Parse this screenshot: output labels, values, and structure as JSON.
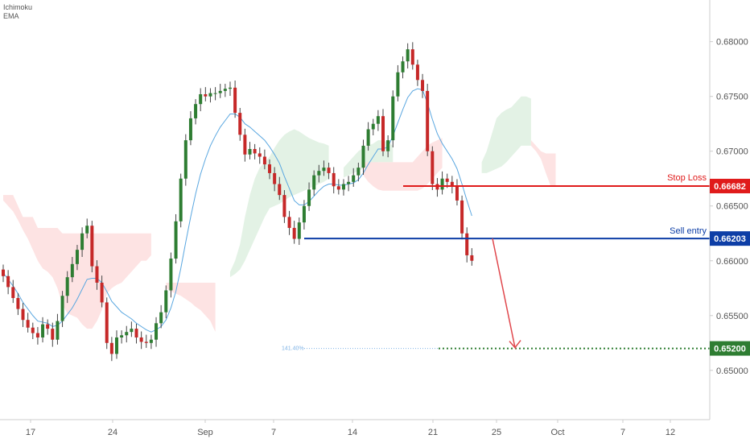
{
  "indicators": [
    "Ichimoku",
    "EMA"
  ],
  "chart_data": {
    "type": "candlestick",
    "ylim": [
      0.6455,
      0.6838
    ],
    "y_ticks": [
      "0.68000",
      "0.67500",
      "0.67000",
      "0.66500",
      "0.66000",
      "0.65500",
      "0.65000"
    ],
    "x_ticks": [
      "17",
      "24",
      "Sep",
      "7",
      "14",
      "21",
      "25",
      "Oct",
      "7",
      "12"
    ],
    "annotations": {
      "stop_loss": {
        "label": "Stop Loss",
        "value": "0.66682",
        "color": "#e01b1b"
      },
      "sell_entry": {
        "label": "Sell entry",
        "value": "0.66203",
        "color": "#0d3ea6"
      },
      "target": {
        "value": "0.65200",
        "color": "#2e7d32"
      },
      "fib_label": "141.40%"
    },
    "colors": {
      "up": "#2e7d32",
      "down": "#c62828",
      "ema": "#5aa7e0",
      "cloud_bull": "#e3f2e5",
      "cloud_bear": "#fde3e3"
    },
    "closes": [
      0.6586,
      0.6576,
      0.6566,
      0.6556,
      0.6546,
      0.6539,
      0.6534,
      0.653,
      0.6542,
      0.6538,
      0.6528,
      0.6545,
      0.6568,
      0.6585,
      0.6597,
      0.661,
      0.6625,
      0.6632,
      0.6595,
      0.658,
      0.6562,
      0.6525,
      0.6515,
      0.653,
      0.6532,
      0.6535,
      0.6538,
      0.653,
      0.6526,
      0.6525,
      0.6528,
      0.6543,
      0.6553,
      0.6573,
      0.6602,
      0.6636,
      0.6675,
      0.671,
      0.673,
      0.6743,
      0.6752,
      0.675,
      0.6753,
      0.6753,
      0.6755,
      0.6757,
      0.6758,
      0.6735,
      0.6715,
      0.6697,
      0.6702,
      0.6698,
      0.6695,
      0.6688,
      0.668,
      0.667,
      0.666,
      0.664,
      0.663,
      0.662,
      0.6635,
      0.665,
      0.6665,
      0.6678,
      0.6682,
      0.6685,
      0.668,
      0.6668,
      0.6665,
      0.667,
      0.6672,
      0.6678,
      0.6685,
      0.6705,
      0.672,
      0.6725,
      0.6732,
      0.67,
      0.671,
      0.675,
      0.6772,
      0.6782,
      0.6793,
      0.6779,
      0.6765,
      0.6755,
      0.67,
      0.667,
      0.6665,
      0.6675,
      0.6672,
      0.6668,
      0.6655,
      0.6625,
      0.6605,
      0.66
    ],
    "ema": [
      0.6589,
      0.6583,
      0.6577,
      0.657,
      0.6562,
      0.6556,
      0.655,
      0.6545,
      0.6544,
      0.6543,
      0.654,
      0.6541,
      0.6545,
      0.6551,
      0.6557,
      0.6565,
      0.6574,
      0.6583,
      0.6584,
      0.6584,
      0.658,
      0.6572,
      0.6563,
      0.6558,
      0.6553,
      0.655,
      0.6547,
      0.6543,
      0.654,
      0.6537,
      0.6535,
      0.6537,
      0.654,
      0.6546,
      0.6557,
      0.6572,
      0.6593,
      0.6617,
      0.664,
      0.6661,
      0.6679,
      0.6693,
      0.6705,
      0.6714,
      0.6722,
      0.6728,
      0.6734,
      0.6734,
      0.6731,
      0.6725,
      0.6722,
      0.6718,
      0.6714,
      0.671,
      0.6704,
      0.6697,
      0.6689,
      0.6677,
      0.6666,
      0.6655,
      0.6651,
      0.6651,
      0.6654,
      0.6659,
      0.6664,
      0.6668,
      0.667,
      0.667,
      0.6669,
      0.6669,
      0.667,
      0.6671,
      0.6674,
      0.668,
      0.6688,
      0.6695,
      0.6702,
      0.6702,
      0.6704,
      0.6714,
      0.6726,
      0.6738,
      0.6749,
      0.6755,
      0.6757,
      0.6756,
      0.6744,
      0.6729,
      0.6716,
      0.6707,
      0.67,
      0.6693,
      0.6684,
      0.667,
      0.6655,
      0.6641
    ],
    "cloud": [
      {
        "type": "bear",
        "top": [
          0.666,
          0.666,
          0.666,
          0.665,
          0.664,
          0.664,
          0.664,
          0.663,
          0.663,
          0.663,
          0.663,
          0.663,
          0.6625,
          0.6625,
          0.6625,
          0.6625,
          0.6625,
          0.6625,
          0.6625,
          0.6625,
          0.6625,
          0.6625,
          0.6625,
          0.6625,
          0.6625,
          0.6625,
          0.6625,
          0.6625,
          0.6625,
          0.6625,
          0.6625
        ],
        "bottom": [
          0.6655,
          0.665,
          0.6645,
          0.6637,
          0.6628,
          0.662,
          0.661,
          0.66,
          0.6593,
          0.659,
          0.6585,
          0.6575,
          0.656,
          0.6552,
          0.655,
          0.6548,
          0.6542,
          0.6538,
          0.6538,
          0.6545,
          0.6555,
          0.657,
          0.6575,
          0.6578,
          0.658,
          0.6585,
          0.659,
          0.6595,
          0.66,
          0.66,
          0.6605
        ]
      },
      {
        "type": "bear",
        "top": [
          0.658,
          0.658,
          0.658,
          0.658,
          0.658,
          0.658,
          0.658,
          0.658,
          0.658,
          0.658,
          0.658
        ],
        "bottom": [
          0.6575,
          0.6572,
          0.657,
          0.6568,
          0.6565,
          0.6562,
          0.6558,
          0.6555,
          0.655,
          0.6545,
          0.6535
        ]
      },
      {
        "type": "bull",
        "top": [
          0.659,
          0.66,
          0.6615,
          0.664,
          0.666,
          0.6675,
          0.6685,
          0.669,
          0.6695,
          0.6703,
          0.671,
          0.6715,
          0.6718,
          0.672,
          0.6718,
          0.6715,
          0.6712,
          0.671,
          0.6708,
          0.6707,
          0.6705
        ],
        "bottom": [
          0.6585,
          0.6588,
          0.6592,
          0.66,
          0.661,
          0.662,
          0.663,
          0.664,
          0.6648,
          0.665,
          0.6652,
          0.6655,
          0.6658,
          0.666,
          0.6662,
          0.6664,
          0.6666,
          0.6668,
          0.667,
          0.6672,
          0.6675
        ]
      },
      {
        "type": "bull",
        "top": [
          0.6685,
          0.669,
          0.6695,
          0.67,
          0.6703,
          0.6705,
          0.6707,
          0.671,
          0.671,
          0.6708,
          0.6705
        ],
        "bottom": [
          0.6676,
          0.6678,
          0.668,
          0.6682,
          0.6684,
          0.6686,
          0.6688,
          0.669,
          0.669,
          0.669,
          0.669
        ]
      },
      {
        "type": "bear",
        "top": [
          0.669,
          0.669,
          0.669,
          0.669,
          0.669,
          0.669,
          0.669,
          0.669,
          0.669,
          0.669,
          0.669,
          0.6695,
          0.67,
          0.6705,
          0.6708,
          0.671,
          0.6712
        ],
        "bottom": [
          0.6678,
          0.6672,
          0.6668,
          0.6665,
          0.6664,
          0.6664,
          0.6664,
          0.6664,
          0.6664,
          0.6664,
          0.6664,
          0.6664,
          0.6666,
          0.667,
          0.6675,
          0.668,
          0.6685
        ]
      },
      {
        "type": "bull",
        "top": [
          0.669,
          0.67,
          0.6715,
          0.673,
          0.6735,
          0.6738,
          0.674,
          0.6745,
          0.675,
          0.675,
          0.6748
        ],
        "bottom": [
          0.668,
          0.668,
          0.6682,
          0.6684,
          0.6686,
          0.669,
          0.6695,
          0.67,
          0.6705,
          0.6705,
          0.6705
        ]
      },
      {
        "type": "bear",
        "top": [
          0.671,
          0.6705,
          0.67,
          0.6698,
          0.6698,
          0.6698
        ],
        "bottom": [
          0.6705,
          0.67,
          0.6693,
          0.668,
          0.6668,
          0.6668
        ]
      }
    ]
  }
}
